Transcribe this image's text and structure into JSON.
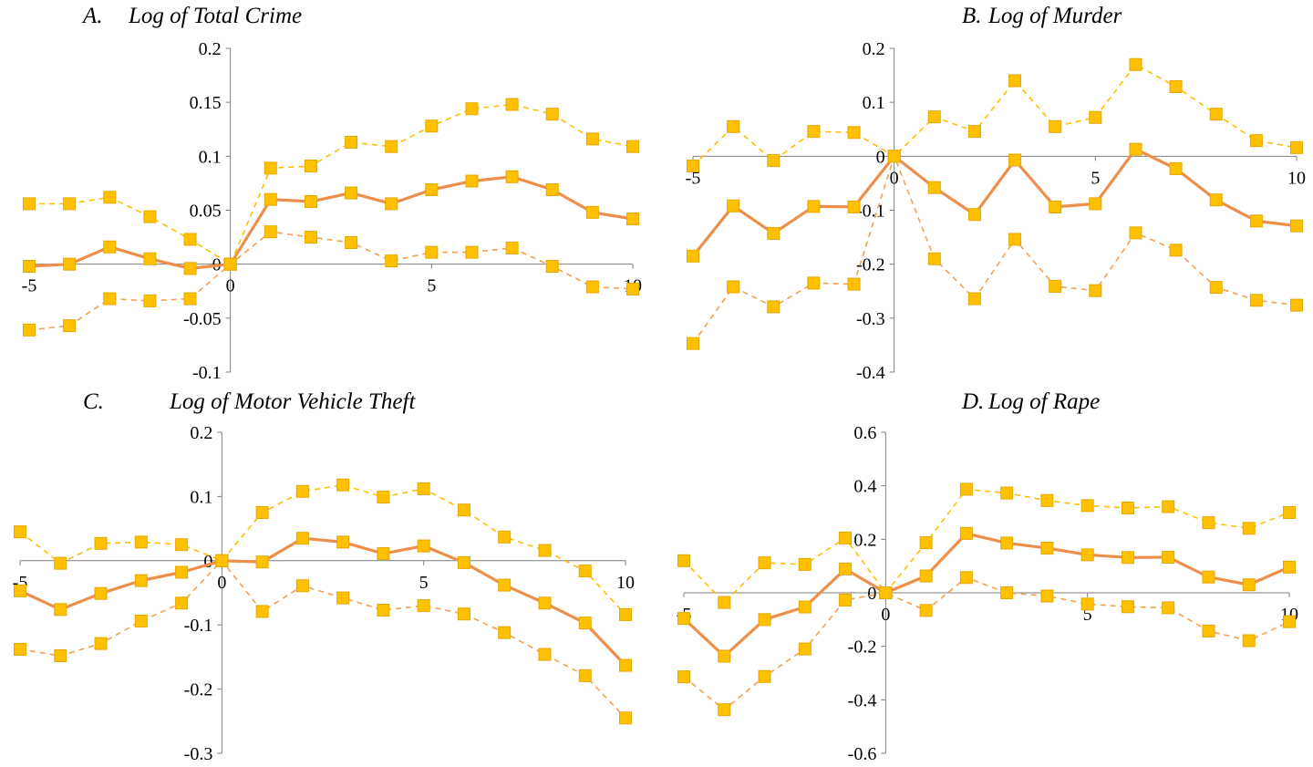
{
  "colors": {
    "estimate_line": "#ED8E4A",
    "ci_upper_line": "#FFC000",
    "ci_lower_line": "#F4A050",
    "marker_fill": "#FFC000",
    "marker_stroke": "#E6A800",
    "axis": "#7f7f7f"
  },
  "chart_data": [
    {
      "type": "line",
      "title": "Log of Total Crime",
      "panel_label": "A.",
      "x": [
        -5,
        -4,
        -3,
        -2,
        -1,
        0,
        1,
        2,
        3,
        4,
        5,
        6,
        7,
        8,
        9,
        10
      ],
      "xticks": [
        "-5",
        "0",
        "5",
        "10"
      ],
      "xtick_values": [
        -5,
        0,
        5,
        10
      ],
      "ylim": [
        -0.1,
        0.2
      ],
      "yticks": [
        "0.2",
        "0.15",
        "0.1",
        "0.05",
        "0",
        "-0.05",
        "-0.1"
      ],
      "ytick_values": [
        0.2,
        0.15,
        0.1,
        0.05,
        0,
        -0.05,
        -0.1
      ],
      "series": [
        {
          "role": "upper",
          "values": [
            0.056,
            0.056,
            0.062,
            0.044,
            0.023,
            0,
            0.089,
            0.091,
            0.113,
            0.109,
            0.128,
            0.144,
            0.148,
            0.139,
            0.116,
            0.109
          ]
        },
        {
          "role": "estimate",
          "values": [
            -0.002,
            0.0,
            0.016,
            0.005,
            -0.004,
            0,
            0.06,
            0.058,
            0.066,
            0.056,
            0.069,
            0.077,
            0.081,
            0.069,
            0.048,
            0.042
          ]
        },
        {
          "role": "lower",
          "values": [
            -0.061,
            -0.057,
            -0.032,
            -0.034,
            -0.032,
            0,
            0.03,
            0.025,
            0.02,
            0.003,
            0.011,
            0.011,
            0.015,
            -0.002,
            -0.021,
            -0.023
          ]
        }
      ],
      "grid": false
    },
    {
      "type": "line",
      "title": "Log of Murder",
      "panel_label": "B.",
      "x": [
        -5,
        -4,
        -3,
        -2,
        -1,
        0,
        1,
        2,
        3,
        4,
        5,
        6,
        7,
        8,
        9,
        10
      ],
      "xticks": [
        "-5",
        "0",
        "5",
        "10"
      ],
      "xtick_values": [
        -5,
        0,
        5,
        10
      ],
      "ylim": [
        -0.4,
        0.2
      ],
      "yticks": [
        "0.2",
        "0.1",
        "0",
        "-0.1",
        "-0.2",
        "-0.3",
        "-0.4"
      ],
      "ytick_values": [
        0.2,
        0.1,
        0,
        -0.1,
        -0.2,
        -0.3,
        -0.4
      ],
      "series": [
        {
          "role": "upper",
          "values": [
            -0.018,
            0.055,
            -0.008,
            0.046,
            0.044,
            0,
            0.073,
            0.046,
            0.14,
            0.055,
            0.072,
            0.17,
            0.129,
            0.078,
            0.029,
            0.016
          ]
        },
        {
          "role": "estimate",
          "values": [
            -0.185,
            -0.092,
            -0.143,
            -0.093,
            -0.094,
            0,
            -0.058,
            -0.108,
            -0.007,
            -0.094,
            -0.088,
            0.013,
            -0.023,
            -0.081,
            -0.12,
            -0.129
          ]
        },
        {
          "role": "lower",
          "values": [
            -0.347,
            -0.242,
            -0.279,
            -0.235,
            -0.237,
            0,
            -0.19,
            -0.264,
            -0.154,
            -0.241,
            -0.249,
            -0.142,
            -0.174,
            -0.243,
            -0.267,
            -0.276
          ]
        }
      ],
      "grid": false
    },
    {
      "type": "line",
      "title": "Log of Motor Vehicle Theft",
      "panel_label": "C.",
      "x": [
        -5,
        -4,
        -3,
        -2,
        -1,
        0,
        1,
        2,
        3,
        4,
        5,
        6,
        7,
        8,
        9,
        10
      ],
      "xticks": [
        "-5",
        "0",
        "5",
        "10"
      ],
      "xtick_values": [
        -5,
        0,
        5,
        10
      ],
      "ylim": [
        -0.3,
        0.2
      ],
      "yticks": [
        "0.2",
        "0.1",
        "0",
        "-0.1",
        "-0.2",
        "-0.3"
      ],
      "ytick_values": [
        0.2,
        0.1,
        0,
        -0.1,
        -0.2,
        -0.3
      ],
      "series": [
        {
          "role": "upper",
          "values": [
            0.045,
            -0.004,
            0.027,
            0.029,
            0.025,
            0,
            0.075,
            0.108,
            0.118,
            0.099,
            0.112,
            0.079,
            0.037,
            0.016,
            -0.016,
            -0.084
          ]
        },
        {
          "role": "estimate",
          "values": [
            -0.047,
            -0.076,
            -0.051,
            -0.031,
            -0.018,
            0,
            -0.002,
            0.035,
            0.029,
            0.011,
            0.023,
            -0.003,
            -0.038,
            -0.066,
            -0.097,
            -0.163
          ]
        },
        {
          "role": "lower",
          "values": [
            -0.138,
            -0.148,
            -0.129,
            -0.094,
            -0.066,
            0,
            -0.079,
            -0.039,
            -0.058,
            -0.077,
            -0.07,
            -0.083,
            -0.112,
            -0.146,
            -0.179,
            -0.245
          ]
        }
      ],
      "grid": false
    },
    {
      "type": "line",
      "title": "Log of Rape",
      "panel_label": "D.",
      "x": [
        -5,
        -4,
        -3,
        -2,
        -1,
        0,
        1,
        2,
        3,
        4,
        5,
        6,
        7,
        8,
        9,
        10
      ],
      "xticks": [
        "-5",
        "0",
        "5",
        "10"
      ],
      "xtick_values": [
        -5,
        0,
        5,
        10
      ],
      "ylim": [
        -0.6,
        0.6
      ],
      "yticks": [
        "0.6",
        "0.4",
        "0.2",
        "0",
        "-0.2",
        "-0.4",
        "-0.6"
      ],
      "ytick_values": [
        0.6,
        0.4,
        0.2,
        0,
        -0.2,
        -0.4,
        -0.6
      ],
      "series": [
        {
          "role": "upper",
          "values": [
            0.12,
            -0.036,
            0.112,
            0.106,
            0.205,
            0,
            0.187,
            0.387,
            0.373,
            0.345,
            0.326,
            0.317,
            0.322,
            0.262,
            0.241,
            0.3
          ]
        },
        {
          "role": "estimate",
          "values": [
            -0.096,
            -0.237,
            -0.1,
            -0.053,
            0.089,
            0,
            0.063,
            0.222,
            0.186,
            0.167,
            0.142,
            0.132,
            0.133,
            0.059,
            0.03,
            0.096
          ]
        },
        {
          "role": "lower",
          "values": [
            -0.314,
            -0.437,
            -0.313,
            -0.21,
            -0.027,
            0,
            -0.066,
            0.057,
            0.0,
            -0.012,
            -0.042,
            -0.052,
            -0.056,
            -0.143,
            -0.179,
            -0.108
          ]
        }
      ],
      "grid": false
    }
  ]
}
